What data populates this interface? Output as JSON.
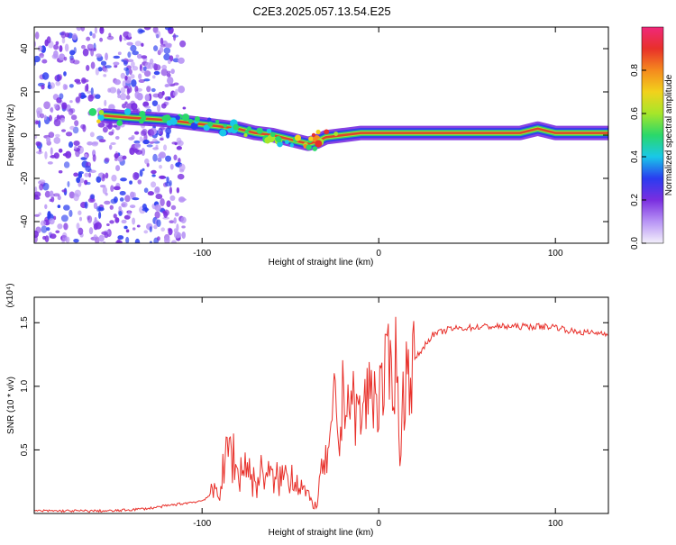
{
  "title": "C2E3.2025.057.13.54.E25",
  "colors": {
    "snr_line": "#e8302a",
    "ridge_core": "#e8302a",
    "scatter": "#7a2ee0",
    "colormap": [
      "#f3f0fb",
      "#b894f5",
      "#7a2ee0",
      "#2a3cf0",
      "#19c8e8",
      "#2ad86a",
      "#a6e62a",
      "#f2d21c",
      "#f58a1e",
      "#e8302a",
      "#f0287a"
    ]
  },
  "chart_data": [
    {
      "type": "heatmap",
      "xlabel": "Height of straight line (km)",
      "ylabel": "Frequency (Hz)",
      "xlim": [
        -195,
        130
      ],
      "ylim": [
        -50,
        50
      ],
      "x_ticks": [
        -100,
        0,
        100
      ],
      "x_tick_labels": [
        "-100",
        "0",
        "100"
      ],
      "y_ticks": [
        -40,
        -20,
        0,
        20,
        40
      ],
      "y_tick_labels": [
        "-40",
        "-20",
        "0",
        "20",
        "40"
      ],
      "colorbar": {
        "label": "Normalized spectral amplitude",
        "range": [
          0,
          1
        ],
        "ticks": [
          0.0,
          0.2,
          0.4,
          0.6,
          0.8
        ],
        "tick_labels": [
          "0.0",
          "0.2",
          "0.4",
          "0.6",
          "0.8"
        ]
      },
      "ridge": {
        "x": [
          -155,
          -140,
          -120,
          -110,
          -100,
          -90,
          -80,
          -70,
          -60,
          -50,
          -40,
          -35,
          -30,
          -20,
          -10,
          0,
          10,
          20,
          40,
          60,
          80,
          90,
          100,
          110,
          130
        ],
        "freq": [
          9,
          8,
          7,
          6,
          5,
          4,
          3,
          1,
          0,
          -2,
          -4,
          -3,
          -1,
          0,
          1,
          1,
          1,
          1,
          1,
          1,
          1,
          3,
          1,
          1,
          1
        ],
        "amplitude": [
          0.55,
          0.5,
          0.45,
          0.4,
          0.45,
          0.45,
          0.5,
          0.5,
          0.55,
          0.5,
          0.6,
          0.7,
          0.8,
          0.85,
          0.9,
          0.9,
          0.9,
          0.9,
          0.9,
          0.9,
          0.9,
          0.85,
          0.9,
          0.9,
          0.9
        ]
      },
      "noise_region_x": [
        -195,
        -110
      ],
      "noise_amplitude": 0.2
    },
    {
      "type": "line",
      "title_exponent": "(x10⁴)",
      "xlabel": "Height of straight line (km)",
      "ylabel": "SNR (10 * v/v)",
      "xlim": [
        -195,
        130
      ],
      "ylim": [
        0,
        1.7
      ],
      "x_ticks": [
        -100,
        0,
        100
      ],
      "x_tick_labels": [
        "-100",
        "0",
        "100"
      ],
      "y_ticks": [
        0.5,
        1.0,
        1.5
      ],
      "y_tick_labels": [
        "0.5",
        "1.0",
        "1.5"
      ],
      "series": [
        {
          "x": [
            -195,
            -150,
            -130,
            -110,
            -100,
            -90,
            -84,
            -80,
            -75,
            -70,
            -65,
            -60,
            -55,
            -50,
            -45,
            -40,
            -35,
            -33,
            -30,
            -27,
            -25,
            -22,
            -20,
            -15,
            -10,
            -5,
            0,
            5,
            10,
            12,
            15,
            20,
            25,
            30,
            40,
            60,
            80,
            100,
            110,
            120,
            130
          ],
          "y": [
            0.02,
            0.02,
            0.04,
            0.08,
            0.1,
            0.2,
            0.55,
            0.3,
            0.4,
            0.22,
            0.35,
            0.25,
            0.28,
            0.32,
            0.25,
            0.12,
            0.05,
            0.3,
            0.4,
            0.55,
            0.9,
            0.5,
            1.0,
            0.85,
            0.75,
            1.0,
            0.9,
            1.1,
            1.2,
            0.5,
            1.1,
            1.2,
            1.3,
            1.4,
            1.45,
            1.47,
            1.47,
            1.47,
            1.43,
            1.42,
            1.42
          ]
        }
      ]
    }
  ]
}
